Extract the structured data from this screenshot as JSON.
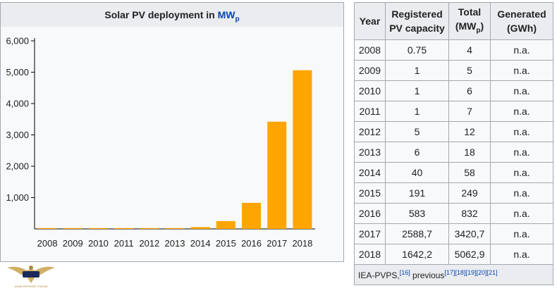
{
  "chart_data": {
    "type": "bar",
    "title_main": "Solar PV deployment in ",
    "title_link": "MW",
    "title_sub": "p",
    "categories": [
      "2008",
      "2009",
      "2010",
      "2011",
      "2012",
      "2013",
      "2014",
      "2015",
      "2016",
      "2017",
      "2018"
    ],
    "values": [
      4,
      5,
      6,
      7,
      12,
      18,
      58,
      249,
      832,
      3420.7,
      5062.9
    ],
    "y_ticks": [
      1000,
      2000,
      3000,
      4000,
      5000,
      6000
    ],
    "y_tick_labels": [
      "1,000",
      "2,000",
      "3,000",
      "4,000",
      "5,000",
      "6,000"
    ],
    "ylim": [
      0,
      6000
    ],
    "bar_color": "#ffa500",
    "grid": false
  },
  "table": {
    "headers": {
      "year": "Year",
      "registered_line1": "Registered",
      "registered_line2": "PV capacity",
      "total_line1": "Total",
      "total_line2_pre": "(MW",
      "total_line2_sub": "p",
      "total_line2_post": ")",
      "generated_line1": "Generated",
      "generated_line2": "(GWh)"
    },
    "rows": [
      {
        "year": "2008",
        "registered": "0.75",
        "total": "4",
        "generated": "n.a."
      },
      {
        "year": "2009",
        "registered": "1",
        "total": "5",
        "generated": "n.a."
      },
      {
        "year": "2010",
        "registered": "1",
        "total": "6",
        "generated": "n.a."
      },
      {
        "year": "2011",
        "registered": "1",
        "total": "7",
        "generated": "n.a."
      },
      {
        "year": "2012",
        "registered": "5",
        "total": "12",
        "generated": "n.a."
      },
      {
        "year": "2013",
        "registered": "6",
        "total": "18",
        "generated": "n.a."
      },
      {
        "year": "2014",
        "registered": "40",
        "total": "58",
        "generated": "n.a."
      },
      {
        "year": "2015",
        "registered": "191",
        "total": "249",
        "generated": "n.a."
      },
      {
        "year": "2016",
        "registered": "583",
        "total": "832",
        "generated": "n.a."
      },
      {
        "year": "2017",
        "registered": "2588,7",
        "total": "3420,7",
        "generated": "n.a."
      },
      {
        "year": "2018",
        "registered": "1642,2",
        "total": "5062,9",
        "generated": "n.a."
      }
    ],
    "source": {
      "text1": "IEA-PVPS,",
      "ref1": "[16]",
      "text2": " previous",
      "refs": [
        "[17]",
        "[18]",
        "[19]",
        "[20]",
        "[21]"
      ]
    }
  },
  "watermark": {
    "text": "ARAB DEFENSE FORUM"
  }
}
